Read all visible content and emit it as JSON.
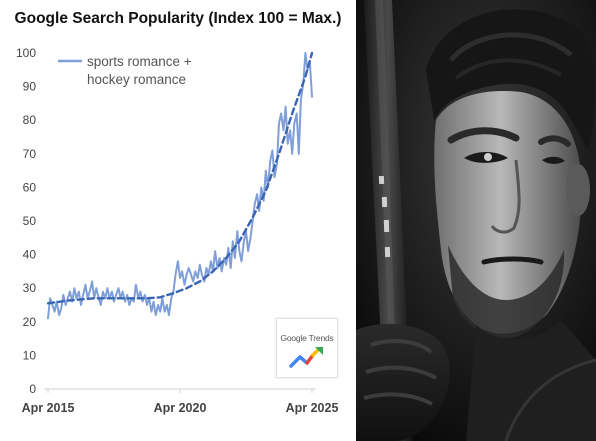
{
  "chart_data": {
    "type": "line",
    "title": "Google Search Popularity (Index 100 = Max.)",
    "xlabel": "",
    "ylabel": "",
    "ylim": [
      0,
      100
    ],
    "yticks": [
      "0",
      "10",
      "20",
      "30",
      "40",
      "50",
      "60",
      "70",
      "80",
      "90",
      "100"
    ],
    "xticks": [
      "Apr 2015",
      "Apr 2020",
      "Apr 2025"
    ],
    "xlim": [
      2015.25,
      2025.25
    ],
    "grid": false,
    "legend_position": "top-left",
    "series": [
      {
        "name": "sports romance + hockey romance",
        "color": "#7f9fd9",
        "style": "solid",
        "points": [
          [
            2015.25,
            21
          ],
          [
            2015.33,
            27
          ],
          [
            2015.42,
            25
          ],
          [
            2015.5,
            23
          ],
          [
            2015.58,
            26
          ],
          [
            2015.67,
            22
          ],
          [
            2015.75,
            24
          ],
          [
            2015.83,
            28
          ],
          [
            2015.92,
            25
          ],
          [
            2016.0,
            27
          ],
          [
            2016.08,
            29
          ],
          [
            2016.17,
            26
          ],
          [
            2016.25,
            30
          ],
          [
            2016.33,
            27
          ],
          [
            2016.42,
            29
          ],
          [
            2016.5,
            25
          ],
          [
            2016.58,
            28
          ],
          [
            2016.67,
            31
          ],
          [
            2016.75,
            27
          ],
          [
            2016.83,
            29
          ],
          [
            2016.92,
            32
          ],
          [
            2017.0,
            27
          ],
          [
            2017.08,
            30
          ],
          [
            2017.17,
            27
          ],
          [
            2017.25,
            25
          ],
          [
            2017.33,
            29
          ],
          [
            2017.42,
            27
          ],
          [
            2017.5,
            30
          ],
          [
            2017.58,
            27
          ],
          [
            2017.67,
            29
          ],
          [
            2017.75,
            26
          ],
          [
            2017.83,
            28
          ],
          [
            2017.92,
            30
          ],
          [
            2018.0,
            27
          ],
          [
            2018.08,
            29
          ],
          [
            2018.17,
            26
          ],
          [
            2018.25,
            28
          ],
          [
            2018.33,
            25
          ],
          [
            2018.42,
            27
          ],
          [
            2018.5,
            26
          ],
          [
            2018.58,
            31
          ],
          [
            2018.67,
            27
          ],
          [
            2018.75,
            29
          ],
          [
            2018.83,
            26
          ],
          [
            2018.92,
            28
          ],
          [
            2019.0,
            25
          ],
          [
            2019.08,
            27
          ],
          [
            2019.17,
            23
          ],
          [
            2019.25,
            26
          ],
          [
            2019.33,
            22
          ],
          [
            2019.42,
            25
          ],
          [
            2019.5,
            23
          ],
          [
            2019.58,
            27
          ],
          [
            2019.67,
            23
          ],
          [
            2019.75,
            25
          ],
          [
            2019.83,
            22
          ],
          [
            2019.92,
            27
          ],
          [
            2020.0,
            29
          ],
          [
            2020.08,
            34
          ],
          [
            2020.17,
            38
          ],
          [
            2020.25,
            33
          ],
          [
            2020.33,
            35
          ],
          [
            2020.42,
            31
          ],
          [
            2020.5,
            34
          ],
          [
            2020.58,
            36
          ],
          [
            2020.67,
            34
          ],
          [
            2020.75,
            32
          ],
          [
            2020.83,
            35
          ],
          [
            2020.92,
            33
          ],
          [
            2021.0,
            37
          ],
          [
            2021.08,
            34
          ],
          [
            2021.17,
            32
          ],
          [
            2021.25,
            36
          ],
          [
            2021.33,
            34
          ],
          [
            2021.42,
            38
          ],
          [
            2021.5,
            35
          ],
          [
            2021.58,
            41
          ],
          [
            2021.67,
            36
          ],
          [
            2021.75,
            39
          ],
          [
            2021.83,
            35
          ],
          [
            2021.92,
            39
          ],
          [
            2022.0,
            37
          ],
          [
            2022.08,
            42
          ],
          [
            2022.17,
            36
          ],
          [
            2022.25,
            44
          ],
          [
            2022.33,
            39
          ],
          [
            2022.42,
            47
          ],
          [
            2022.5,
            41
          ],
          [
            2022.58,
            38
          ],
          [
            2022.67,
            44
          ],
          [
            2022.75,
            47
          ],
          [
            2022.83,
            41
          ],
          [
            2022.92,
            45
          ],
          [
            2023.0,
            50
          ],
          [
            2023.08,
            55
          ],
          [
            2023.17,
            58
          ],
          [
            2023.25,
            53
          ],
          [
            2023.33,
            60
          ],
          [
            2023.42,
            56
          ],
          [
            2023.5,
            65
          ],
          [
            2023.58,
            60
          ],
          [
            2023.67,
            68
          ],
          [
            2023.75,
            71
          ],
          [
            2023.83,
            63
          ],
          [
            2023.92,
            67
          ],
          [
            2024.0,
            79
          ],
          [
            2024.08,
            82
          ],
          [
            2024.17,
            77
          ],
          [
            2024.25,
            84
          ],
          [
            2024.33,
            73
          ],
          [
            2024.42,
            77
          ],
          [
            2024.5,
            70
          ],
          [
            2024.58,
            79
          ],
          [
            2024.67,
            82
          ],
          [
            2024.75,
            70
          ],
          [
            2024.83,
            86
          ],
          [
            2024.92,
            91
          ],
          [
            2025.0,
            100
          ],
          [
            2025.08,
            95
          ],
          [
            2025.17,
            97
          ],
          [
            2025.25,
            87
          ]
        ]
      },
      {
        "name": "trend",
        "color": "#3a65b4",
        "style": "dashed",
        "points": [
          [
            2015.25,
            25.5
          ],
          [
            2016.0,
            26.3
          ],
          [
            2017.0,
            27
          ],
          [
            2018.0,
            27
          ],
          [
            2019.0,
            27
          ],
          [
            2019.5,
            27.3
          ],
          [
            2020.0,
            28.5
          ],
          [
            2020.5,
            30
          ],
          [
            2021.0,
            32
          ],
          [
            2021.5,
            35
          ],
          [
            2022.0,
            39
          ],
          [
            2022.5,
            44
          ],
          [
            2023.0,
            51
          ],
          [
            2023.5,
            59
          ],
          [
            2024.0,
            70
          ],
          [
            2024.5,
            82
          ],
          [
            2025.0,
            93
          ],
          [
            2025.25,
            100
          ]
        ]
      }
    ],
    "legend_label_lines": [
      "sports romance +",
      "hockey romance"
    ]
  },
  "logo": {
    "text": "Google Trends",
    "arrow_colors": [
      "#4285f4",
      "#ea4335",
      "#fbbc05",
      "#34a853"
    ]
  },
  "photo": {
    "description_icon": "hockey-player-photo"
  }
}
